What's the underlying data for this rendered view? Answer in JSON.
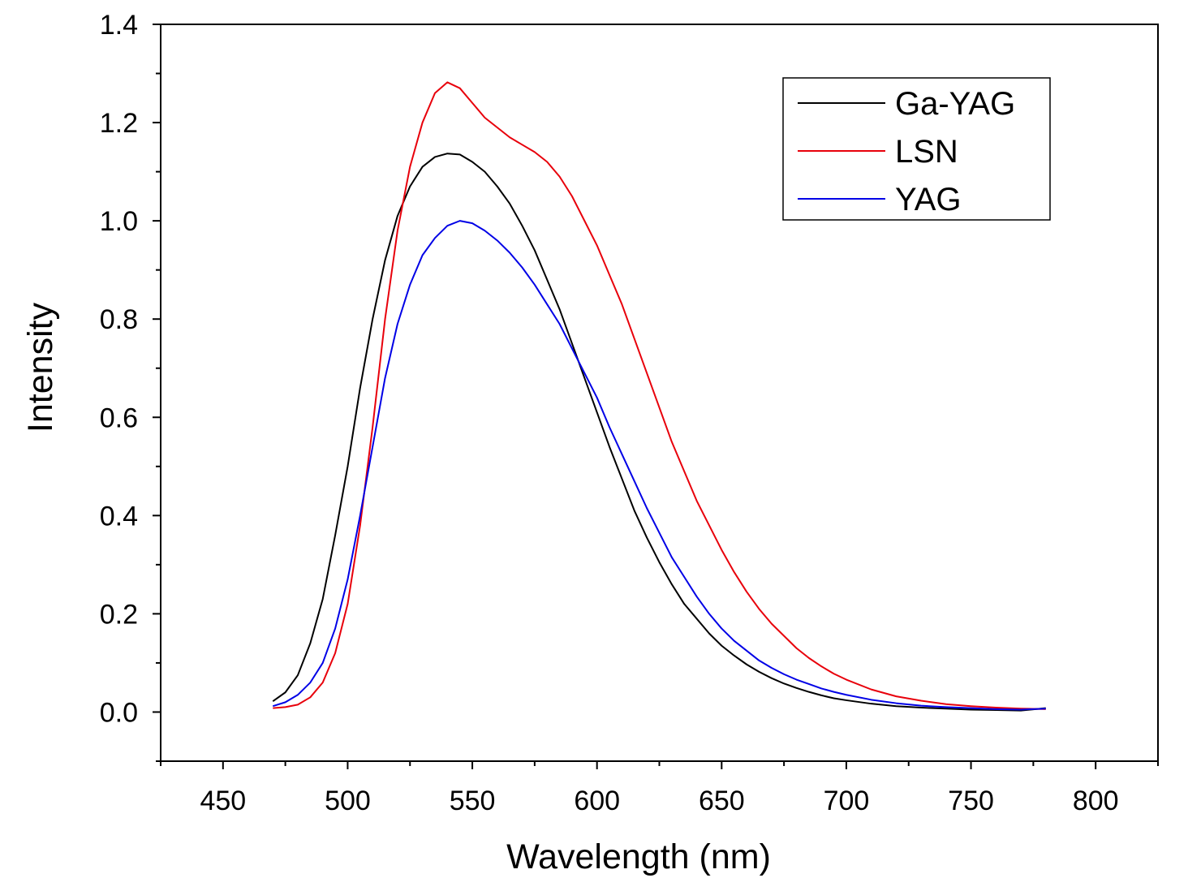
{
  "chart_data": {
    "type": "line",
    "title": "",
    "xlabel": "Wavelength (nm)",
    "ylabel": "Intensity",
    "xlim": [
      425,
      825
    ],
    "ylim": [
      -0.1,
      1.4
    ],
    "x_ticks": [
      450,
      500,
      550,
      600,
      650,
      700,
      750,
      800
    ],
    "x_tick_labels": [
      "450",
      "500",
      "550",
      "600",
      "650",
      "700",
      "750",
      "800"
    ],
    "y_ticks": [
      0.0,
      0.2,
      0.4,
      0.6,
      0.8,
      1.0,
      1.2,
      1.4
    ],
    "y_tick_labels": [
      "0.0",
      "0.2",
      "0.4",
      "0.6",
      "0.8",
      "1.0",
      "1.2",
      "1.4"
    ],
    "grid": false,
    "legend_position": "top-right",
    "series": [
      {
        "name": "Ga-YAG",
        "color": "#000000",
        "points": [
          [
            470,
            0.022
          ],
          [
            475,
            0.04
          ],
          [
            480,
            0.075
          ],
          [
            485,
            0.14
          ],
          [
            490,
            0.23
          ],
          [
            495,
            0.36
          ],
          [
            500,
            0.5
          ],
          [
            505,
            0.66
          ],
          [
            510,
            0.8
          ],
          [
            515,
            0.92
          ],
          [
            520,
            1.01
          ],
          [
            525,
            1.07
          ],
          [
            530,
            1.11
          ],
          [
            535,
            1.13
          ],
          [
            540,
            1.137
          ],
          [
            545,
            1.135
          ],
          [
            550,
            1.12
          ],
          [
            555,
            1.1
          ],
          [
            560,
            1.07
          ],
          [
            565,
            1.035
          ],
          [
            570,
            0.99
          ],
          [
            575,
            0.94
          ],
          [
            580,
            0.88
          ],
          [
            585,
            0.82
          ],
          [
            590,
            0.75
          ],
          [
            595,
            0.68
          ],
          [
            600,
            0.61
          ],
          [
            605,
            0.54
          ],
          [
            610,
            0.475
          ],
          [
            615,
            0.41
          ],
          [
            620,
            0.355
          ],
          [
            625,
            0.305
          ],
          [
            630,
            0.26
          ],
          [
            635,
            0.22
          ],
          [
            640,
            0.19
          ],
          [
            645,
            0.16
          ],
          [
            650,
            0.135
          ],
          [
            655,
            0.115
          ],
          [
            660,
            0.097
          ],
          [
            665,
            0.082
          ],
          [
            670,
            0.069
          ],
          [
            675,
            0.058
          ],
          [
            680,
            0.049
          ],
          [
            685,
            0.041
          ],
          [
            690,
            0.034
          ],
          [
            695,
            0.028
          ],
          [
            700,
            0.024
          ],
          [
            710,
            0.017
          ],
          [
            720,
            0.012
          ],
          [
            730,
            0.009
          ],
          [
            740,
            0.007
          ],
          [
            750,
            0.005
          ],
          [
            760,
            0.004
          ],
          [
            770,
            0.003
          ],
          [
            780,
            0.008
          ]
        ]
      },
      {
        "name": "LSN",
        "color": "#e8000b",
        "points": [
          [
            470,
            0.008
          ],
          [
            475,
            0.01
          ],
          [
            480,
            0.015
          ],
          [
            485,
            0.03
          ],
          [
            490,
            0.06
          ],
          [
            495,
            0.12
          ],
          [
            500,
            0.22
          ],
          [
            505,
            0.38
          ],
          [
            510,
            0.58
          ],
          [
            515,
            0.8
          ],
          [
            520,
            0.98
          ],
          [
            525,
            1.11
          ],
          [
            530,
            1.2
          ],
          [
            535,
            1.26
          ],
          [
            540,
            1.282
          ],
          [
            545,
            1.27
          ],
          [
            550,
            1.24
          ],
          [
            555,
            1.21
          ],
          [
            560,
            1.19
          ],
          [
            565,
            1.17
          ],
          [
            570,
            1.155
          ],
          [
            575,
            1.14
          ],
          [
            580,
            1.12
          ],
          [
            585,
            1.09
          ],
          [
            590,
            1.05
          ],
          [
            595,
            1.0
          ],
          [
            600,
            0.95
          ],
          [
            605,
            0.89
          ],
          [
            610,
            0.83
          ],
          [
            615,
            0.76
          ],
          [
            620,
            0.69
          ],
          [
            625,
            0.62
          ],
          [
            630,
            0.55
          ],
          [
            635,
            0.49
          ],
          [
            640,
            0.43
          ],
          [
            645,
            0.38
          ],
          [
            650,
            0.33
          ],
          [
            655,
            0.285
          ],
          [
            660,
            0.245
          ],
          [
            665,
            0.21
          ],
          [
            670,
            0.18
          ],
          [
            675,
            0.155
          ],
          [
            680,
            0.13
          ],
          [
            685,
            0.11
          ],
          [
            690,
            0.093
          ],
          [
            695,
            0.078
          ],
          [
            700,
            0.066
          ],
          [
            710,
            0.046
          ],
          [
            720,
            0.032
          ],
          [
            730,
            0.023
          ],
          [
            740,
            0.016
          ],
          [
            750,
            0.012
          ],
          [
            760,
            0.009
          ],
          [
            770,
            0.007
          ],
          [
            780,
            0.006
          ]
        ]
      },
      {
        "name": "YAG",
        "color": "#0000e6",
        "points": [
          [
            470,
            0.012
          ],
          [
            475,
            0.02
          ],
          [
            480,
            0.035
          ],
          [
            485,
            0.06
          ],
          [
            490,
            0.1
          ],
          [
            495,
            0.17
          ],
          [
            500,
            0.27
          ],
          [
            505,
            0.4
          ],
          [
            510,
            0.54
          ],
          [
            515,
            0.68
          ],
          [
            520,
            0.79
          ],
          [
            525,
            0.87
          ],
          [
            530,
            0.93
          ],
          [
            535,
            0.965
          ],
          [
            540,
            0.99
          ],
          [
            545,
            1.0
          ],
          [
            550,
            0.995
          ],
          [
            555,
            0.98
          ],
          [
            560,
            0.96
          ],
          [
            565,
            0.935
          ],
          [
            570,
            0.905
          ],
          [
            575,
            0.87
          ],
          [
            580,
            0.83
          ],
          [
            585,
            0.79
          ],
          [
            590,
            0.74
          ],
          [
            595,
            0.69
          ],
          [
            600,
            0.64
          ],
          [
            605,
            0.58
          ],
          [
            610,
            0.525
          ],
          [
            615,
            0.47
          ],
          [
            620,
            0.415
          ],
          [
            625,
            0.365
          ],
          [
            630,
            0.315
          ],
          [
            635,
            0.275
          ],
          [
            640,
            0.235
          ],
          [
            645,
            0.2
          ],
          [
            650,
            0.17
          ],
          [
            655,
            0.145
          ],
          [
            660,
            0.125
          ],
          [
            665,
            0.105
          ],
          [
            670,
            0.09
          ],
          [
            675,
            0.077
          ],
          [
            680,
            0.066
          ],
          [
            685,
            0.057
          ],
          [
            690,
            0.048
          ],
          [
            695,
            0.041
          ],
          [
            700,
            0.035
          ],
          [
            710,
            0.025
          ],
          [
            720,
            0.018
          ],
          [
            730,
            0.013
          ],
          [
            740,
            0.01
          ],
          [
            750,
            0.008
          ],
          [
            760,
            0.006
          ],
          [
            770,
            0.005
          ],
          [
            780,
            0.007
          ]
        ]
      }
    ]
  }
}
